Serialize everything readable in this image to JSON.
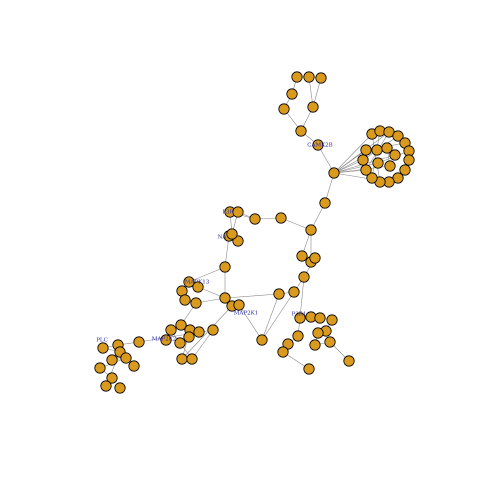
{
  "graph": {
    "node_fill": "#d99a1e",
    "node_stroke": "#000000",
    "edge_color": "#8a8a8a",
    "label_color": "#2a2aa8",
    "labels": [
      "CAMK2B",
      "P3R1",
      "MAP2K1",
      "MAPK13",
      "NA",
      "P3R",
      "MAP2K2",
      "PLC"
    ]
  }
}
